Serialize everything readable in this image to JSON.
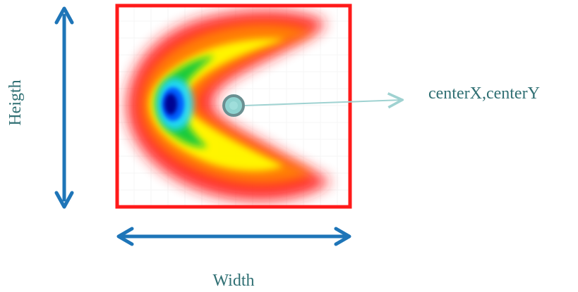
{
  "labels": {
    "height": "Heigth",
    "width": "Width",
    "center": "centerX,centerY"
  },
  "colors": {
    "frame": "#ff1a1a",
    "dimension_arrow": "#1e75b8",
    "center_marker_fill": "#8fd3d0",
    "center_marker_stroke": "#6b8f91",
    "center_arrow": "#9fd2d1",
    "label_text": "#2f6f73"
  },
  "icons": {
    "vertical_arrow": "double-headed-vertical-arrow-icon",
    "horizontal_arrow": "double-headed-horizontal-arrow-icon",
    "center_marker": "circle-marker-icon"
  }
}
